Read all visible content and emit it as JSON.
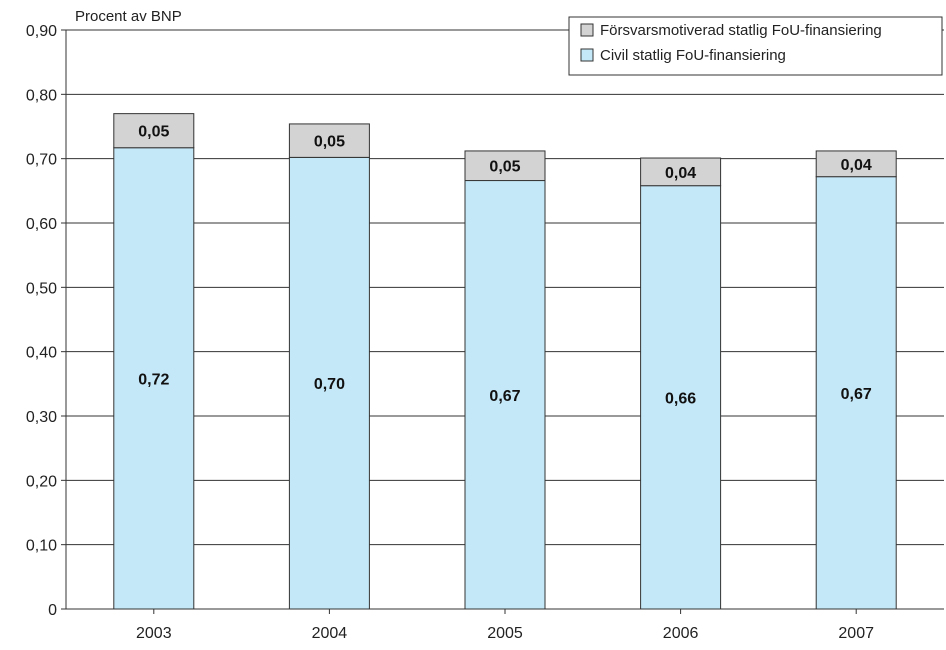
{
  "chart_data": {
    "type": "bar",
    "stacked": true,
    "ylabel": "Procent av BNP",
    "xlabel": "",
    "categories": [
      "2003",
      "2004",
      "2005",
      "2006",
      "2007"
    ],
    "ylim": [
      0,
      0.9
    ],
    "y_ticks": [
      "0",
      "0,10",
      "0,20",
      "0,30",
      "0,40",
      "0,50",
      "0,60",
      "0,70",
      "0,80",
      "0,90"
    ],
    "grid": true,
    "legend_position": "top-right",
    "series": [
      {
        "name": "Civil statlig FoU-finansiering",
        "color": "#c5e8f8",
        "values": [
          0.717,
          0.702,
          0.666,
          0.658,
          0.672
        ],
        "labels": [
          "0,72",
          "0,70",
          "0,67",
          "0,66",
          "0,67"
        ]
      },
      {
        "name": "Försvarsmotiverad statlig FoU-finansiering",
        "color": "#d3d3d3",
        "values": [
          0.053,
          0.052,
          0.046,
          0.043,
          0.04
        ],
        "labels": [
          "0,05",
          "0,05",
          "0,05",
          "0,04",
          "0,04"
        ]
      }
    ],
    "legend_order": [
      1,
      0
    ]
  }
}
